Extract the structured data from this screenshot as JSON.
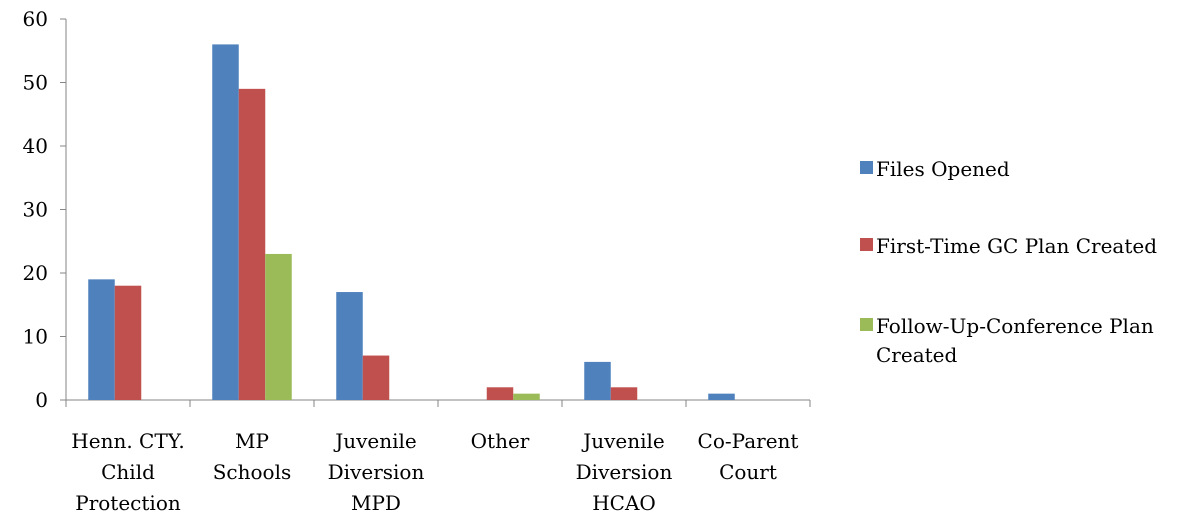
{
  "chart_data": {
    "type": "bar",
    "categories": [
      [
        "Henn. CTY.",
        "Child",
        "Protection"
      ],
      [
        "MP",
        "Schools"
      ],
      [
        "Juvenile",
        "Diversion",
        "MPD"
      ],
      [
        "Other"
      ],
      [
        "Juvenile",
        "Diversion",
        "HCAO"
      ],
      [
        "Co-Parent",
        "Court"
      ]
    ],
    "series": [
      {
        "name": "Files Opened",
        "legend_lines": [
          "Files Opened"
        ],
        "color": "#4F81BD",
        "values": [
          19,
          56,
          17,
          0,
          6,
          1
        ]
      },
      {
        "name": "First-Time GC Plan Created",
        "legend_lines": [
          "First-Time GC Plan Created"
        ],
        "color": "#C0504D",
        "values": [
          18,
          49,
          7,
          2,
          2,
          0
        ]
      },
      {
        "name": "Follow-Up-Conference Plan Created",
        "legend_lines": [
          "Follow-Up-Conference Plan",
          "Created"
        ],
        "color": "#9BBB59",
        "values": [
          0,
          23,
          0,
          1,
          0,
          0
        ]
      }
    ],
    "ylim": [
      0,
      60
    ],
    "yticks": [
      0,
      10,
      20,
      30,
      40,
      50,
      60
    ],
    "grid": false,
    "legend_position": "right",
    "title": "",
    "xlabel": "",
    "ylabel": ""
  }
}
